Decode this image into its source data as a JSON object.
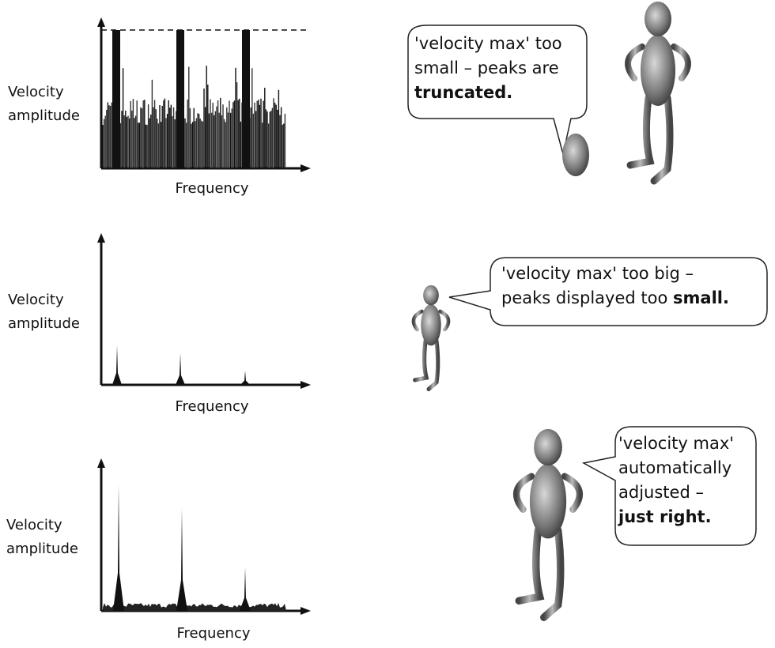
{
  "panels": [
    {
      "y_label": [
        "Velocity",
        "amplitude"
      ],
      "x_label": "Frequency",
      "speech": {
        "lines": [
          "'velocity max' too",
          "small – peaks are"
        ],
        "emphasis": "truncated."
      }
    },
    {
      "y_label": [
        "Velocity",
        "amplitude"
      ],
      "x_label": "Frequency",
      "speech": {
        "lines": [
          "'velocity max' too big –",
          "peaks displayed too"
        ],
        "emphasis": "small."
      }
    },
    {
      "y_label": [
        "Velocity",
        "amplitude"
      ],
      "x_label": "Frequency",
      "speech": {
        "lines": [
          "'velocity max'",
          "automatically",
          "adjusted –"
        ],
        "emphasis": "just right."
      }
    }
  ]
}
